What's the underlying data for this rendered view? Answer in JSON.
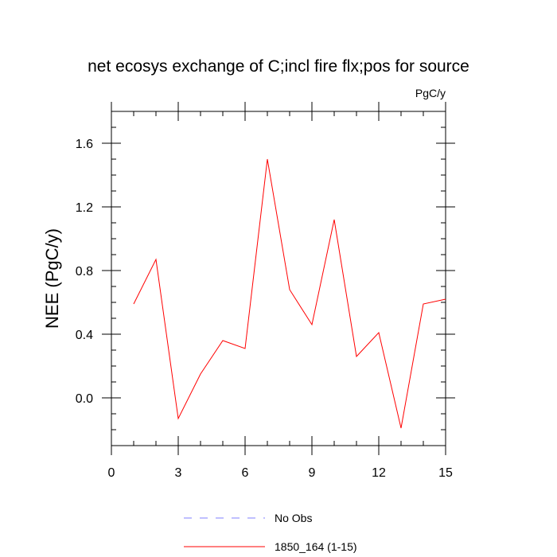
{
  "chart_data": {
    "type": "line",
    "title": "net ecosys exchange of C;incl fire flx;pos for source",
    "units": "PgC/y",
    "xlabel": "",
    "ylabel": "NEE  (PgC/y)",
    "xlim": [
      0,
      15
    ],
    "ylim": [
      -0.3,
      1.8
    ],
    "x_ticks": [
      0,
      3,
      6,
      9,
      12,
      15
    ],
    "x_tick_labels": [
      "0",
      "3",
      "6",
      "9",
      "12",
      "15"
    ],
    "y_ticks": [
      0.0,
      0.4,
      0.8,
      1.2,
      1.6
    ],
    "y_tick_labels": [
      "0.0",
      "0.4",
      "0.8",
      "1.2",
      "1.6"
    ],
    "grid": false,
    "legend_position": "bottom",
    "x": [
      1,
      2,
      3,
      4,
      5,
      6,
      7,
      8,
      9,
      10,
      11,
      12,
      13,
      14,
      15
    ],
    "series": [
      {
        "name": "1850_164 (1-15)",
        "color": "#ff0000",
        "style": "solid",
        "values": [
          0.59,
          0.87,
          -0.13,
          0.15,
          0.36,
          0.31,
          1.5,
          0.68,
          0.46,
          1.12,
          0.26,
          0.41,
          -0.19,
          0.59,
          0.62
        ]
      }
    ],
    "legend": [
      {
        "label": "No Obs",
        "color": "#8080ff",
        "style": "dashed"
      },
      {
        "label": "1850_164 (1-15)",
        "color": "#ff0000",
        "style": "solid"
      }
    ]
  }
}
